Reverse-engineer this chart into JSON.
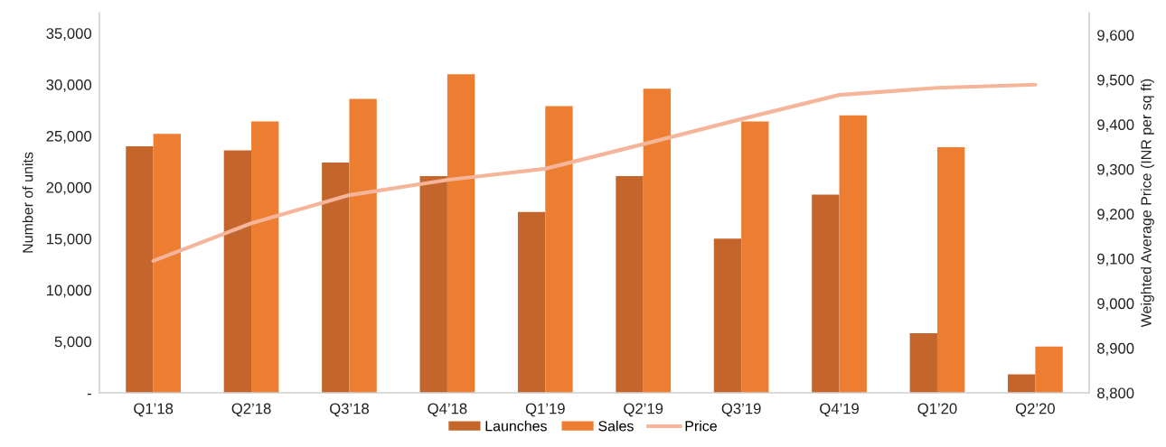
{
  "chart_data": {
    "type": "bar",
    "categories": [
      "Q1’18",
      "Q2’18",
      "Q3’18",
      "Q4’18",
      "Q1’19",
      "Q2’19",
      "Q3’19",
      "Q4’19",
      "Q1’20",
      "Q2’20"
    ],
    "series": [
      {
        "name": "Launches",
        "color": "#c4662b",
        "values": [
          24000,
          23600,
          22400,
          21100,
          17600,
          21100,
          15000,
          19300,
          5800,
          1800
        ]
      },
      {
        "name": "Sales",
        "color": "#ed7d31",
        "values": [
          25200,
          26400,
          28600,
          31000,
          27900,
          29600,
          26400,
          27000,
          23900,
          4500
        ]
      },
      {
        "name": "Price",
        "type": "line",
        "axis": "y2",
        "color": "#f4b59a",
        "values": [
          9095,
          9179,
          9242,
          9276,
          9301,
          9356,
          9412,
          9466,
          9482,
          9489
        ]
      }
    ],
    "ylabel": "Number of units",
    "y2label": "Weighted Average Price (INR per sq ft)",
    "ylim": [
      0,
      37000
    ],
    "yticks": [
      {
        "value": 0,
        "label": "-"
      },
      {
        "value": 5000,
        "label": "5,000"
      },
      {
        "value": 10000,
        "label": "10,000"
      },
      {
        "value": 15000,
        "label": "15,000"
      },
      {
        "value": 20000,
        "label": "20,000"
      },
      {
        "value": 25000,
        "label": "25,000"
      },
      {
        "value": 30000,
        "label": "30,000"
      },
      {
        "value": 35000,
        "label": "35,000"
      }
    ],
    "y2lim": [
      8800,
      9650
    ],
    "y2ticks": [
      {
        "value": 8800,
        "label": "8,800"
      },
      {
        "value": 8900,
        "label": "8,900"
      },
      {
        "value": 9000,
        "label": "9,000"
      },
      {
        "value": 9100,
        "label": "9,100"
      },
      {
        "value": 9200,
        "label": "9,200"
      },
      {
        "value": 9300,
        "label": "9,300"
      },
      {
        "value": 9400,
        "label": "9,400"
      },
      {
        "value": 9500,
        "label": "9,500"
      },
      {
        "value": 9600,
        "label": "9,600"
      }
    ],
    "legend": "bottom",
    "grid": false,
    "marker": "none",
    "line_style": "solid"
  }
}
